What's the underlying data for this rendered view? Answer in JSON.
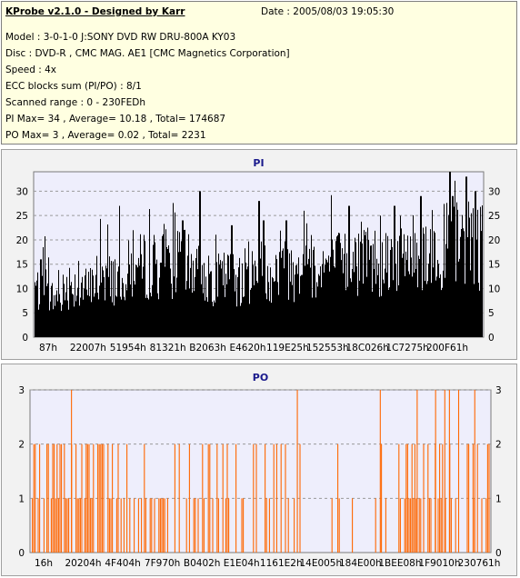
{
  "header": {
    "title": "KProbe v2.1.0 - Designed by Karr",
    "date": "Date : 2005/08/03 19:05:30",
    "lines": [
      "Model : 3-0-1-0 J:SONY    DVD RW DRU-800A  KY03",
      "Disc : DVD-R , CMC MAG. AE1 [CMC Magnetics Corporation]",
      "Speed : 4x",
      "ECC blocks sum (PI/PO) : 8/1",
      "Scanned range : 0 - 230FEDh",
      "PI Max= 34 , Average= 10.18 , Total= 174687",
      "PO Max= 3 , Average= 0.02 , Total= 2231"
    ]
  },
  "colors": {
    "header_bg": "#ffffe1",
    "plot_bg": "#eeeefc",
    "pi_bars": "#000000",
    "po_bars": "#ff6600",
    "grid": "#9a9a9a",
    "title": "#1a1a8c"
  },
  "chart_data": [
    {
      "type": "bar",
      "title": "PI",
      "xlabel": "",
      "ylabel": "",
      "ylim": [
        0,
        34
      ],
      "yticks": [
        0,
        5,
        10,
        15,
        20,
        25,
        30
      ],
      "xticks": [
        "87h",
        "22007h",
        "51954h",
        "81321h",
        "B2063h",
        "E4620h",
        "119E25h",
        "152553h",
        "18C026h",
        "1C7275h",
        "200F61h"
      ],
      "grid": true,
      "series_shape": [
        [
          0.0,
          12
        ],
        [
          0.02,
          10
        ],
        [
          0.05,
          9
        ],
        [
          0.08,
          13
        ],
        [
          0.1,
          12
        ],
        [
          0.12,
          11
        ],
        [
          0.15,
          15
        ],
        [
          0.18,
          14
        ],
        [
          0.22,
          16
        ],
        [
          0.26,
          17
        ],
        [
          0.3,
          17
        ],
        [
          0.34,
          17
        ],
        [
          0.38,
          15
        ],
        [
          0.4,
          13
        ],
        [
          0.42,
          14
        ],
        [
          0.46,
          14
        ],
        [
          0.5,
          15
        ],
        [
          0.55,
          16
        ],
        [
          0.6,
          16
        ],
        [
          0.65,
          17
        ],
        [
          0.7,
          17
        ],
        [
          0.75,
          18
        ],
        [
          0.8,
          19
        ],
        [
          0.85,
          20
        ],
        [
          0.9,
          21
        ],
        [
          0.95,
          22
        ],
        [
          1.0,
          21
        ]
      ],
      "peaks": [
        [
          0.015,
          16
        ],
        [
          0.33,
          24
        ],
        [
          0.368,
          30
        ],
        [
          0.44,
          23
        ],
        [
          0.5,
          28
        ],
        [
          0.51,
          24
        ],
        [
          0.56,
          24
        ],
        [
          0.6,
          26
        ],
        [
          0.7,
          27
        ],
        [
          0.8,
          27
        ],
        [
          0.86,
          29
        ],
        [
          0.93,
          29
        ],
        [
          0.925,
          34
        ],
        [
          0.96,
          33
        ],
        [
          0.98,
          30
        ]
      ]
    },
    {
      "type": "bar",
      "title": "PO",
      "xlabel": "",
      "ylabel": "",
      "ylim": [
        0,
        3
      ],
      "yticks": [
        0,
        1,
        2,
        3
      ],
      "xticks": [
        "16h",
        "20204h",
        "4F404h",
        "7F970h",
        "B0402h",
        "E1E04h",
        "1161E2h",
        "14E005h",
        "184E00h",
        "1BEE08h",
        "1F9010h",
        "230761h"
      ],
      "grid": true,
      "active_ranges": [
        [
          0.0,
          0.18,
          0.65
        ],
        [
          0.18,
          0.25,
          0.45
        ],
        [
          0.25,
          0.4,
          0.55
        ],
        [
          0.4,
          0.55,
          0.35
        ],
        [
          0.55,
          0.7,
          0.25
        ],
        [
          0.7,
          0.77,
          0.05
        ],
        [
          0.77,
          0.81,
          0.3
        ],
        [
          0.81,
          1.0,
          0.6
        ]
      ],
      "peaks_at_3": [
        0.09,
        0.58,
        0.76,
        0.84,
        0.88,
        0.9,
        0.91,
        0.93,
        0.965
      ]
    }
  ]
}
